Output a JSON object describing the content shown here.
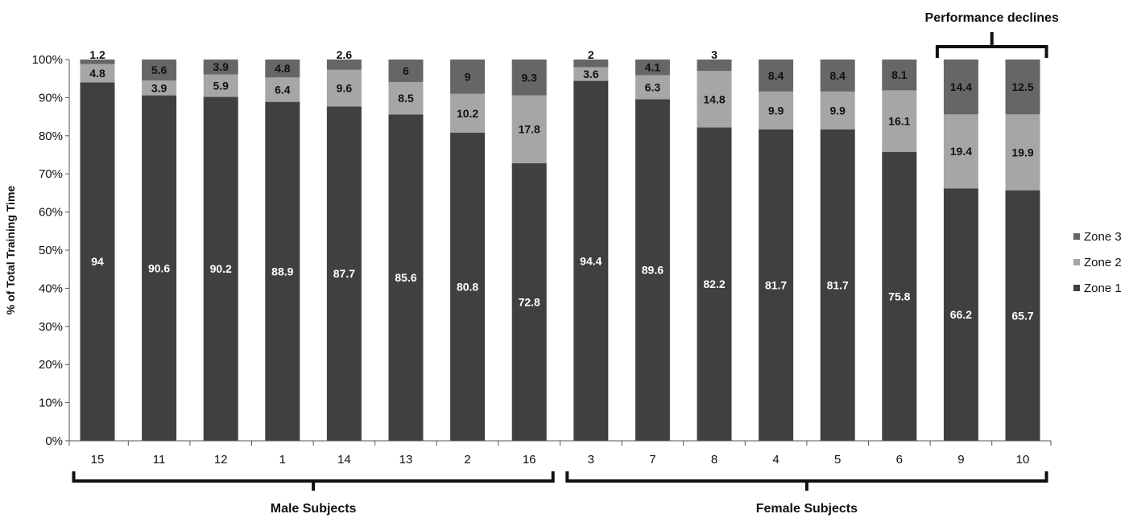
{
  "chart_data": {
    "type": "bar",
    "stacked": true,
    "categories": [
      "15",
      "11",
      "12",
      "1",
      "14",
      "13",
      "2",
      "16",
      "3",
      "7",
      "8",
      "4",
      "5",
      "6",
      "9",
      "10"
    ],
    "series": [
      {
        "name": "Zone 1",
        "color": "#404040",
        "values": [
          94,
          90.6,
          90.2,
          88.9,
          87.7,
          85.6,
          80.8,
          72.8,
          94.4,
          89.6,
          82.2,
          81.7,
          81.7,
          75.8,
          66.2,
          65.7
        ]
      },
      {
        "name": "Zone 2",
        "color": "#a6a6a6",
        "values": [
          4.8,
          3.9,
          5.9,
          6.4,
          9.6,
          8.5,
          10.2,
          17.8,
          3.6,
          6.3,
          14.8,
          9.9,
          9.9,
          16.1,
          19.4,
          19.9
        ]
      },
      {
        "name": "Zone 3",
        "color": "#666666",
        "values": [
          1.2,
          5.6,
          3.9,
          4.8,
          2.6,
          6,
          9,
          9.3,
          2,
          4.1,
          3,
          8.4,
          8.4,
          8.1,
          14.4,
          12.5
        ]
      }
    ],
    "data_labels": {
      "Zone 1": [
        "94",
        "90.6",
        "90.2",
        "88.9",
        "87.7",
        "85.6",
        "80.8",
        "72.8",
        "94.4",
        "89.6",
        "82.2",
        "81.7",
        "81.7",
        "75.8",
        "66.2",
        "65.7"
      ],
      "Zone 2": [
        "4.8",
        "3.9",
        "5.9",
        "6.4",
        "9.6",
        "8.5",
        "10.2",
        "17.8",
        "3.6",
        "6.3",
        "14.8",
        "9.9",
        "9.9",
        "16.1",
        "19.4",
        "19.9"
      ],
      "Zone 3": [
        "1.2",
        "5.6",
        "3.9",
        "4.8",
        "2.6",
        "6",
        "9",
        "9.3",
        "2",
        "4.1",
        "3",
        "8.4",
        "8.4",
        "8.1",
        "14.4",
        "12.5"
      ]
    },
    "ylabel": "% of Total Training Time",
    "ylim": [
      0,
      100
    ],
    "y_ticks": [
      "0%",
      "10%",
      "20%",
      "30%",
      "40%",
      "50%",
      "60%",
      "70%",
      "80%",
      "90%",
      "100%"
    ],
    "grid": false,
    "legend": {
      "position": "right",
      "order": [
        "Zone 3",
        "Zone 2",
        "Zone 1"
      ]
    },
    "groups": [
      {
        "label": "Male Subjects",
        "start": 0,
        "end": 7,
        "position": "bottom"
      },
      {
        "label": "Female Subjects",
        "start": 8,
        "end": 15,
        "position": "bottom"
      },
      {
        "label": "Performance declines",
        "start": 14,
        "end": 15,
        "position": "top"
      }
    ]
  }
}
